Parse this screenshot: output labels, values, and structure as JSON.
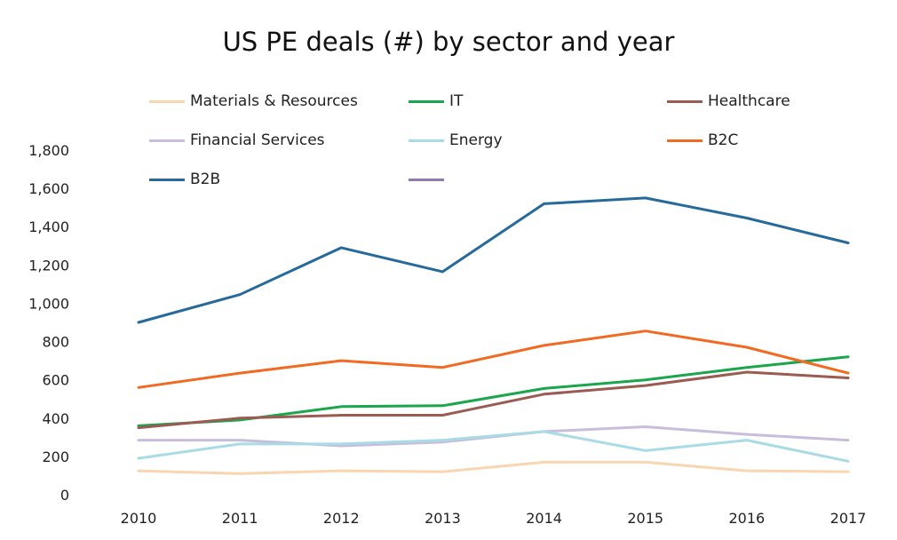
{
  "chart_data": {
    "type": "line",
    "title": "US PE deals (#) by sector and year",
    "xlabel": "",
    "ylabel": "",
    "categories": [
      "2010",
      "2011",
      "2012",
      "2013",
      "2014",
      "2015",
      "2016",
      "2017"
    ],
    "ylim": [
      0,
      1800
    ],
    "yticks": [
      0,
      200,
      400,
      600,
      800,
      1000,
      1200,
      1400,
      1600,
      1800
    ],
    "ytick_labels": [
      "0",
      "200",
      "400",
      "600",
      "800",
      "1,000",
      "1,200",
      "1,400",
      "1,600",
      "1,800"
    ],
    "grid": false,
    "legend_position": "top",
    "series": [
      {
        "name": "Materials & Resources",
        "color": "#f9d5b0",
        "values": [
          125,
          110,
          125,
          120,
          170,
          170,
          125,
          120
        ]
      },
      {
        "name": "IT",
        "color": "#1aa64a",
        "values": [
          360,
          390,
          460,
          465,
          555,
          600,
          665,
          720
        ]
      },
      {
        "name": "Healthcare",
        "color": "#9b5b52",
        "values": [
          350,
          400,
          415,
          415,
          525,
          570,
          640,
          610
        ]
      },
      {
        "name": "Financial Services",
        "color": "#c8bedc",
        "values": [
          285,
          285,
          255,
          275,
          330,
          355,
          315,
          285
        ]
      },
      {
        "name": "Energy",
        "color": "#a9dbe6",
        "values": [
          190,
          265,
          265,
          285,
          330,
          230,
          285,
          175
        ]
      },
      {
        "name": "B2C",
        "color": "#f26a21",
        "values": [
          560,
          635,
          700,
          665,
          780,
          855,
          770,
          635
        ]
      },
      {
        "name": "B2B",
        "color": "#266a9c",
        "values": [
          900,
          1045,
          1290,
          1165,
          1520,
          1550,
          1445,
          1315
        ]
      }
    ],
    "legend_extra": {
      "name": "",
      "color": "#9479ab"
    }
  }
}
